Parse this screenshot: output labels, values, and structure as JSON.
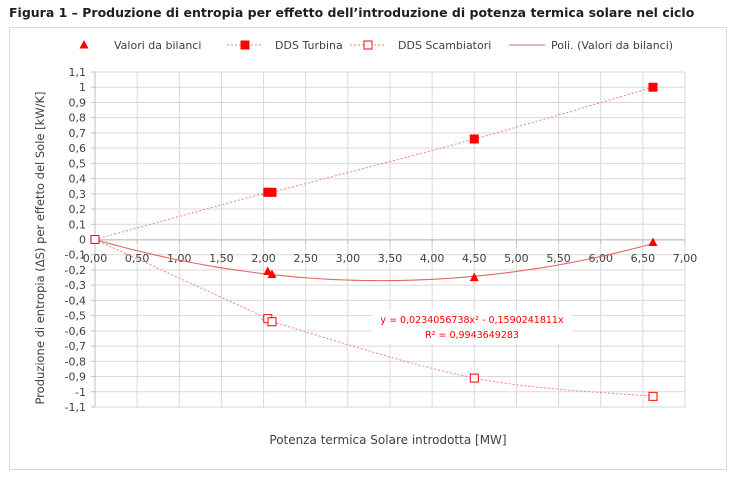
{
  "figure": {
    "title": "Figura 1 – Produzione di entropia per effetto dell’introduzione di potenza termica solare nel ciclo"
  },
  "chart_data": {
    "type": "scatter",
    "xlabel": "Potenza termica Solare introdotta [MW]",
    "ylabel": "Produzione di entropia (ΔS) per effetto del Sole [kW/K]",
    "xlim": [
      0,
      7
    ],
    "ylim": [
      -1.1,
      1.1
    ],
    "x_ticks": [
      0,
      0.5,
      1,
      1.5,
      2,
      2.5,
      3,
      3.5,
      4,
      4.5,
      5,
      5.5,
      6,
      6.5,
      7
    ],
    "x_tick_labels": [
      "0,00",
      "0,50",
      "1,00",
      "1,50",
      "2,00",
      "2,50",
      "3,00",
      "3,50",
      "4,00",
      "4,50",
      "5,00",
      "5,50",
      "6,00",
      "6,50",
      "7,00"
    ],
    "y_ticks": [
      1.1,
      1,
      0.9,
      0.8,
      0.7,
      0.6,
      0.5,
      0.4,
      0.3,
      0.2,
      0.1,
      0,
      -0.1,
      -0.2,
      -0.3,
      -0.4,
      -0.5,
      -0.6,
      -0.7,
      -0.8,
      -0.9,
      -1,
      -1.1
    ],
    "y_tick_labels": [
      "1,1",
      "1",
      "0,9",
      "0,8",
      "0,7",
      "0,6",
      "0,5",
      "0,4",
      "0,3",
      "0,2",
      "0,1",
      "0",
      "-0,1",
      "-0,2",
      "-0,3",
      "-0,4",
      "-0,5",
      "-0,6",
      "-0,7",
      "-0,8",
      "-0,9",
      "-1",
      "-1,1"
    ],
    "grid": true,
    "legend_position": "top",
    "colors": {
      "series": "#ff0000",
      "trend": "#f08080",
      "grid": "#d9d9d9"
    },
    "series": [
      {
        "name": "Valori da bilanci",
        "marker": "triangle",
        "x": [
          0,
          2.05,
          2.1,
          4.5,
          6.62
        ],
        "y": [
          0,
          -0.21,
          -0.23,
          -0.25,
          -0.02
        ]
      },
      {
        "name": "DDS Turbina",
        "marker": "square-filled",
        "x": [
          0,
          2.05,
          2.1,
          4.5,
          6.62
        ],
        "y": [
          0,
          0.31,
          0.31,
          0.66,
          1.0
        ]
      },
      {
        "name": "DDS Scambiatori",
        "marker": "square-open",
        "x": [
          0,
          2.05,
          2.1,
          4.5,
          6.62
        ],
        "y": [
          0,
          -0.52,
          -0.54,
          -0.91,
          -1.03
        ]
      }
    ],
    "trendline": {
      "name": "Poli. (Valori da bilanci)",
      "type": "polynomial",
      "coefficients": {
        "a2": 0.0234056738,
        "a1": -0.1590241811,
        "a0": 0
      },
      "equation": "y = 0,0234056738x² - 0,1590241811x",
      "r_squared": "R² = 0,9943649283"
    }
  }
}
